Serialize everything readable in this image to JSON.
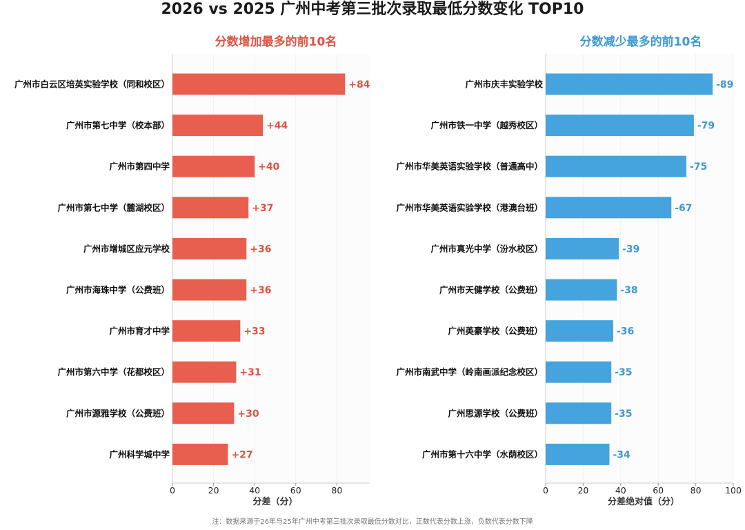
{
  "title": "2026 vs 2025 广州中考第三批次录取最低分数变化 TOP10",
  "note": "注：数据来源于26年与25年广州中考第三批次录取最低分数对比，正数代表分数上涨，负数代表分数下降",
  "colors": {
    "increase": "#e85f4f",
    "decrease": "#45a3dd",
    "label_increase": "#e05242",
    "label_decrease": "#3e98d2"
  },
  "chart_data": [
    {
      "type": "bar",
      "orientation": "horizontal",
      "title": "分数增加最多的前10名",
      "xlabel": "分差（分）",
      "xlim": [
        0,
        96
      ],
      "xticks": [
        0,
        20,
        40,
        60,
        80
      ],
      "categories": [
        "广州市白云区培英实验学校（同和校区）",
        "广州市第七中学（校本部）",
        "广州市第四中学",
        "广州市第七中学（麓湖校区）",
        "广州市增城区应元学校",
        "广州市海珠中学（公费班）",
        "广州市育才中学",
        "广州市第六中学（花都校区）",
        "广州市源雅学校（公费班）",
        "广州科学城中学"
      ],
      "values": [
        84,
        44,
        40,
        37,
        36,
        36,
        33,
        31,
        30,
        27
      ],
      "value_labels": [
        "+84",
        "+44",
        "+40",
        "+37",
        "+36",
        "+36",
        "+33",
        "+31",
        "+30",
        "+27"
      ]
    },
    {
      "type": "bar",
      "orientation": "horizontal",
      "title": "分数减少最多的前10名",
      "xlabel": "分差绝对值（分）",
      "xlim": [
        0,
        100
      ],
      "xticks": [
        0,
        20,
        40,
        60,
        80,
        100
      ],
      "categories": [
        "广州市庆丰实验学校",
        "广州市铁一中学（越秀校区）",
        "广州市华美英语实验学校（普通高中）",
        "广州市华美英语实验学校（港澳台班）",
        "广州市真光中学（汾水校区）",
        "广州市天健学校（公费班）",
        "广州英豪学校（公费班）",
        "广州市南武中学（岭南画派纪念校区）",
        "广州思源学校（公费班）",
        "广州市第十六中学（水荫校区）"
      ],
      "values": [
        89,
        79,
        75,
        67,
        39,
        38,
        36,
        35,
        35,
        34
      ],
      "value_labels": [
        "-89",
        "-79",
        "-75",
        "-67",
        "-39",
        "-38",
        "-36",
        "-35",
        "-35",
        "-34"
      ]
    }
  ]
}
